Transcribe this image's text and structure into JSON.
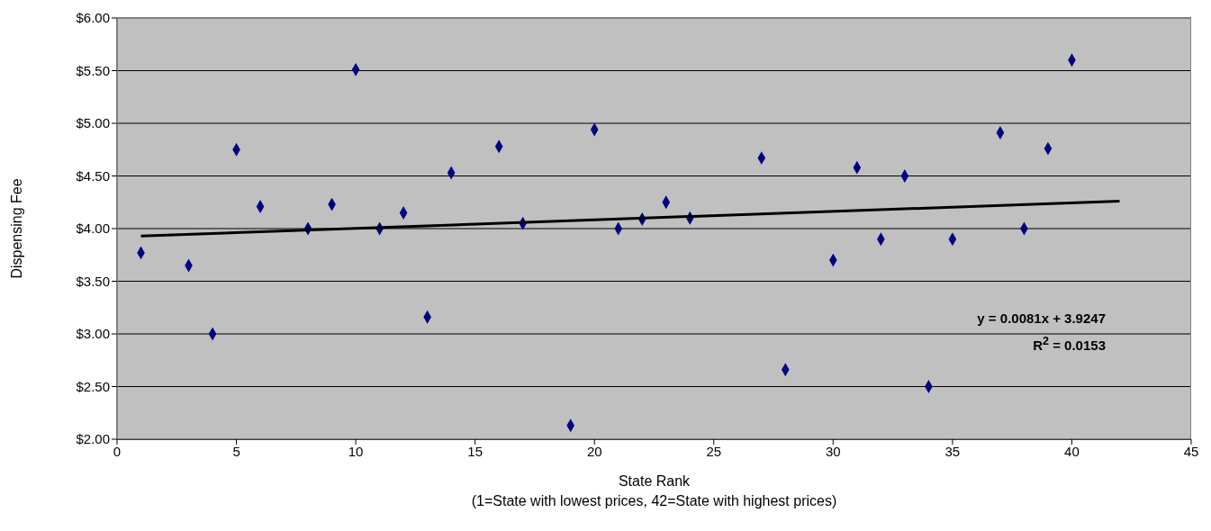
{
  "chart_data": {
    "type": "scatter",
    "xlabel": "State Rank",
    "ylabel": "Dispensing Fee",
    "annotations": [
      "y = 0.0081x + 3.9247",
      "R$^{2}$ = 0.0153",
      "(1=State with lowest prices, 42=State with highest prices)"
    ],
    "series": [
      {
        "color": "#000080",
        "marker": "diamond",
        "x": [
          1,
          3,
          4,
          5,
          6,
          8,
          9,
          10,
          11,
          12,
          13,
          14,
          16,
          17,
          19,
          20,
          21,
          22,
          23,
          24,
          27,
          28,
          30,
          31,
          32,
          33,
          34,
          35,
          37,
          38,
          39,
          40
        ],
        "values": [
          3.77,
          3.65,
          3.0,
          4.75,
          4.21,
          4.0,
          4.23,
          5.51,
          4.0,
          4.15,
          3.16,
          4.53,
          4.78,
          4.05,
          2.13,
          4.94,
          4.0,
          4.09,
          4.25,
          4.1,
          4.67,
          2.66,
          3.7,
          4.58,
          3.9,
          4.5,
          2.5,
          3.9,
          4.91,
          4.0,
          4.76,
          5.6
        ]
      },
      {
        "type": "line",
        "color": "#000000",
        "marker": "none",
        "x": [
          1,
          42
        ],
        "values": [
          3.93,
          4.26
        ]
      }
    ],
    "xlim": [
      0,
      45
    ],
    "xticks": [
      0,
      5,
      10,
      15,
      20,
      25,
      30,
      35,
      40,
      45
    ],
    "ylim": [
      2,
      6
    ],
    "yticks": [
      {
        "value": 2,
        "label": "$2.00"
      },
      {
        "value": 2.5,
        "label": "$2.50"
      },
      {
        "value": 3,
        "label": "$3.00"
      },
      {
        "value": 3.5,
        "label": "$3.50"
      },
      {
        "value": 4,
        "label": "$4.00"
      },
      {
        "value": 4.5,
        "label": "$4.50"
      },
      {
        "value": 5,
        "label": "$5.00"
      },
      {
        "value": 5.5,
        "label": "$5.50"
      },
      {
        "value": 6,
        "label": "$6.00"
      }
    ],
    "grid": "y"
  }
}
